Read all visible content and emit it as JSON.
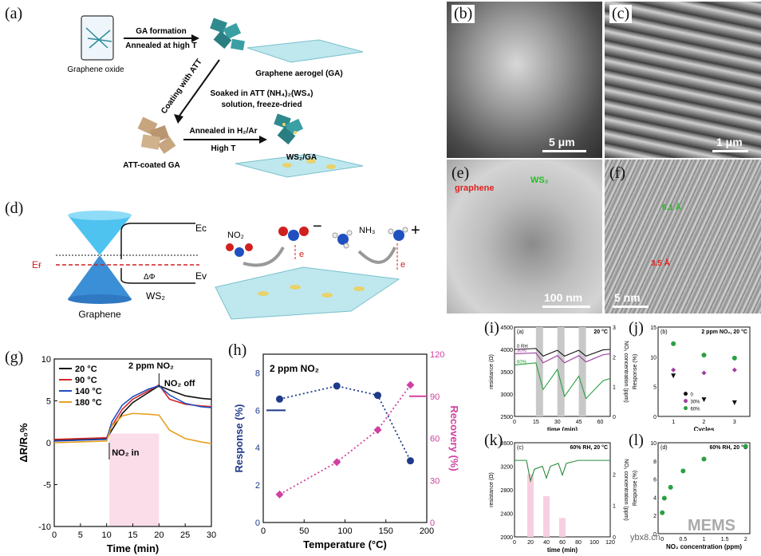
{
  "panel_labels": {
    "a": "(a)",
    "b": "(b)",
    "c": "(c)",
    "d": "(d)",
    "e": "(e)",
    "f": "(f)",
    "g": "(g)",
    "h": "(h)",
    "i": "(i)",
    "j": "(j)",
    "k": "(k)",
    "l": "(l)"
  },
  "schematic_a": {
    "graphene_oxide": "Graphene oxide",
    "ga_formation": "GA formation",
    "annealed_high_t": "Annealed at high T",
    "graphene_aerogel": "Graphene aerogel (GA)",
    "coating_att": "Coating with ATT",
    "soaked": "Soaked in ATT (NH₄)₂(WS₄)",
    "solution": "solution, freeze-dried",
    "annealed_h2": "Annealed in H₂/Ar",
    "high_t": "High T",
    "att_coated": "ATT-coated GA",
    "ws2_ga": "WS₂/GA"
  },
  "sem": {
    "b_scale": "5 μm",
    "c_scale": "1 μm",
    "e_scale": "100 nm",
    "e_graphene": "graphene",
    "e_ws2": "WS₂",
    "f_scale": "5 nm",
    "f_d1": "6.1 Å",
    "f_d2": "3.5 Å"
  },
  "schematic_d": {
    "ec": "Eᴄ",
    "ef": "Eғ",
    "ev": "Eᴠ",
    "phi": "ΔΦ",
    "graphene": "Graphene",
    "ws2": "WS₂",
    "no2": "NO₂",
    "nh3": "NH₃",
    "minus": "−",
    "plus": "+",
    "e": "e"
  },
  "chart_data": [
    {
      "id": "g",
      "type": "line",
      "xlabel": "Time (min)",
      "ylabel": "ΔR/R₀%",
      "xlim": [
        0,
        30
      ],
      "ylim": [
        -10,
        10
      ],
      "xticks": [
        0,
        5,
        10,
        15,
        20,
        25,
        30
      ],
      "yticks": [
        -10,
        -5,
        0,
        5,
        10
      ],
      "annotations": {
        "title": "2 ppm NO₂",
        "off": "NO₂ off",
        "on": "NO₂ in"
      },
      "series": [
        {
          "name": "20 °C",
          "color": "#111111",
          "x": [
            0,
            5,
            10,
            11,
            13,
            15,
            18,
            20,
            22,
            25,
            28,
            30
          ],
          "y": [
            0.3,
            0.4,
            0.5,
            1.5,
            3.5,
            4.8,
            6.0,
            6.8,
            6.3,
            5.6,
            5.3,
            5.2
          ]
        },
        {
          "name": "90 °C",
          "color": "#d62728",
          "x": [
            0,
            5,
            10,
            11,
            13,
            15,
            18,
            20,
            22,
            25,
            28,
            30
          ],
          "y": [
            0.4,
            0.5,
            0.6,
            2.0,
            4.0,
            5.2,
            6.2,
            6.9,
            5.2,
            4.6,
            4.4,
            4.3
          ]
        },
        {
          "name": "140 °C",
          "color": "#1f4fbf",
          "x": [
            0,
            5,
            10,
            11,
            13,
            15,
            18,
            20,
            22,
            25,
            28,
            30
          ],
          "y": [
            0.2,
            0.3,
            0.4,
            2.5,
            4.5,
            5.5,
            6.4,
            6.8,
            5.7,
            4.7,
            4.3,
            4.2
          ]
        },
        {
          "name": "180 °C",
          "color": "#e6a020",
          "x": [
            0,
            5,
            10,
            11,
            13,
            15,
            18,
            20,
            22,
            25,
            28,
            30
          ],
          "y": [
            0.0,
            0.1,
            0.2,
            2.0,
            3.2,
            3.5,
            3.4,
            3.3,
            1.5,
            0.5,
            0.1,
            -0.1
          ]
        }
      ]
    },
    {
      "id": "h",
      "type": "line",
      "xlabel": "Temperature (°C)",
      "ylabel": "Response (%)",
      "ylabel2": "Recovery (%)",
      "title": "2 ppm NO₂",
      "xlim": [
        0,
        200
      ],
      "ylim": [
        0,
        9
      ],
      "ylim2": [
        0,
        120
      ],
      "xticks": [
        0,
        50,
        100,
        150,
        200
      ],
      "yticks": [
        0,
        2,
        4,
        6,
        8
      ],
      "yticks2": [
        0,
        30,
        60,
        90,
        120
      ],
      "series": [
        {
          "axis": "left",
          "color": "#1f3a8a",
          "x": [
            20,
            90,
            140,
            180
          ],
          "y": [
            6.6,
            7.3,
            6.8,
            3.3
          ]
        },
        {
          "axis": "right",
          "color": "#d040a0",
          "x": [
            20,
            90,
            140,
            180
          ],
          "y": [
            20,
            43,
            66,
            98
          ]
        }
      ]
    },
    {
      "id": "i",
      "type": "line",
      "title": "20 °C",
      "sublabel": "(a)",
      "xlabel": "time (min)",
      "ylabel": "resistance (Ω)",
      "ylabel2": "NO₂ concentration (ppm)",
      "xlim": [
        0,
        67
      ],
      "ylim": [
        2500,
        4500
      ],
      "xticks": [
        0,
        15,
        30,
        45,
        60
      ],
      "yticks": [
        2500,
        3000,
        3500,
        4000,
        4500
      ],
      "yticks2": [
        0,
        1,
        2,
        3
      ],
      "series_labels": [
        "0 RH",
        "30%",
        "60%"
      ],
      "exposure_windows": [
        [
          15,
          20
        ],
        [
          30,
          35
        ],
        [
          45,
          50
        ]
      ]
    },
    {
      "id": "j",
      "type": "scatter",
      "title": "2 ppm NO₂, 20 °C",
      "sublabel": "(b)",
      "xlabel": "Cycles",
      "ylabel": "Response (%)",
      "xlim": [
        0.5,
        3.5
      ],
      "ylim": [
        0,
        15
      ],
      "xticks": [
        1,
        2,
        3
      ],
      "yticks": [
        0,
        5,
        10,
        15
      ],
      "series": [
        {
          "name": "0",
          "color": "#111111",
          "x": [
            1,
            2,
            3
          ],
          "y": [
            6.8,
            2.8,
            2.3
          ]
        },
        {
          "name": "30%",
          "color": "#a040a0",
          "x": [
            1,
            2,
            3
          ],
          "y": [
            7.8,
            7.3,
            7.8
          ]
        },
        {
          "name": "60%",
          "color": "#2aa040",
          "x": [
            1,
            2,
            3
          ],
          "y": [
            12.2,
            10.3,
            9.8
          ]
        }
      ]
    },
    {
      "id": "k",
      "type": "line",
      "title": "60% RH, 20 °C",
      "sublabel": "(c)",
      "xlabel": "time (min)",
      "ylabel": "resistance (Ω)",
      "ylabel2": "NO₂ concentration (ppm)",
      "xlim": [
        0,
        120
      ],
      "ylim": [
        2000,
        3600
      ],
      "xticks": [
        0,
        20,
        40,
        60,
        80,
        100,
        120
      ],
      "yticks": [
        2000,
        2400,
        2800,
        3200,
        3600
      ],
      "yticks2": [
        0,
        1,
        2
      ],
      "bars": [
        {
          "x": 20,
          "h": 2
        },
        {
          "x": 40,
          "h": 1.3
        },
        {
          "x": 60,
          "h": 0.6
        }
      ]
    },
    {
      "id": "l",
      "type": "scatter",
      "title": "60% RH, 20 °C",
      "sublabel": "(d)",
      "xlabel": "NO₂ concentration (ppm)",
      "ylabel": "Response (%)",
      "xlim": [
        -0.1,
        2.1
      ],
      "ylim": [
        0,
        10
      ],
      "xticks": [
        0,
        0.5,
        1,
        1.5,
        2
      ],
      "yticks": [
        0,
        2,
        4,
        6,
        8,
        10
      ],
      "series": [
        {
          "color": "#2aa040",
          "x": [
            0,
            0.05,
            0.2,
            0.5,
            1,
            2
          ],
          "y": [
            2.3,
            3.9,
            5.1,
            6.9,
            8.2,
            9.6
          ]
        }
      ]
    }
  ],
  "watermark": "MEMS",
  "watermark2": "ybx8.cn"
}
